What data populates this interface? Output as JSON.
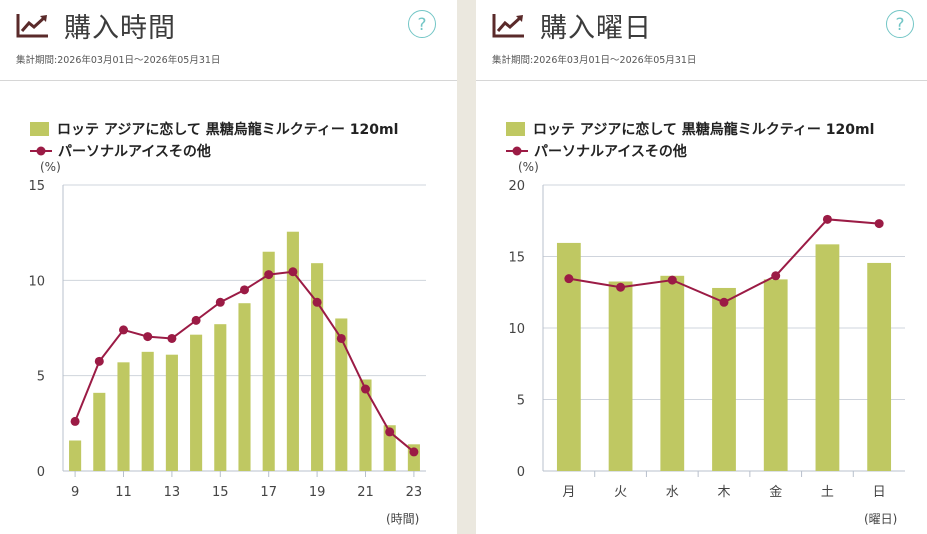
{
  "colors": {
    "bar": "#bfc862",
    "line": "#9b1b45",
    "help": "#73c6c6",
    "grid": "#cfd4dc"
  },
  "legend": {
    "bar_label": "ロッテ アジアに恋して 黒糖烏龍ミルクティー 120ml",
    "line_label": "パーソナルアイスその他"
  },
  "period_label": "集計期間:2026年03月01日～2026年05月31日",
  "help_label": "?",
  "icons": {
    "title": "trend-chart-icon",
    "help": "question-circle-icon"
  },
  "panels": {
    "time": {
      "title": "購入時間",
      "y_unit": "(%)",
      "x_unit": "(時間)"
    },
    "weekday": {
      "title": "購入曜日",
      "y_unit": "(%)",
      "x_unit": "(曜日)"
    }
  },
  "chart_data": [
    {
      "type": "bar",
      "title": "購入時間",
      "xlabel": "(時間)",
      "ylabel": "(%)",
      "ylim": [
        0,
        15
      ],
      "yticks": [
        0,
        5,
        10,
        15
      ],
      "categories": [
        "9",
        "10",
        "11",
        "12",
        "13",
        "14",
        "15",
        "16",
        "17",
        "18",
        "19",
        "20",
        "21",
        "22",
        "23"
      ],
      "xtick_labels": [
        "9",
        "11",
        "13",
        "15",
        "17",
        "19",
        "21",
        "23"
      ],
      "series": [
        {
          "name": "ロッテ アジアに恋して 黒糖烏龍ミルクティー 120ml",
          "type": "bar",
          "values": [
            1.6,
            4.1,
            5.7,
            6.25,
            6.1,
            7.15,
            7.7,
            8.8,
            11.5,
            12.55,
            10.9,
            8.0,
            4.8,
            2.4,
            1.4
          ]
        },
        {
          "name": "パーソナルアイスその他",
          "type": "line",
          "values": [
            2.6,
            5.75,
            7.4,
            7.05,
            6.95,
            7.9,
            8.85,
            9.5,
            10.3,
            10.45,
            8.85,
            6.95,
            4.3,
            2.05,
            1.0
          ]
        }
      ],
      "grid": true,
      "legend_position": "top-left"
    },
    {
      "type": "bar",
      "title": "購入曜日",
      "xlabel": "(曜日)",
      "ylabel": "(%)",
      "ylim": [
        0,
        20
      ],
      "yticks": [
        0,
        5,
        10,
        15,
        20
      ],
      "categories": [
        "月",
        "火",
        "水",
        "木",
        "金",
        "土",
        "日"
      ],
      "series": [
        {
          "name": "ロッテ アジアに恋して 黒糖烏龍ミルクティー 120ml",
          "type": "bar",
          "values": [
            15.95,
            13.25,
            13.65,
            12.8,
            13.4,
            15.85,
            14.55
          ]
        },
        {
          "name": "パーソナルアイスその他",
          "type": "line",
          "values": [
            13.45,
            12.85,
            13.35,
            11.8,
            13.65,
            17.6,
            17.3
          ]
        }
      ],
      "grid": true,
      "legend_position": "top-left"
    }
  ]
}
